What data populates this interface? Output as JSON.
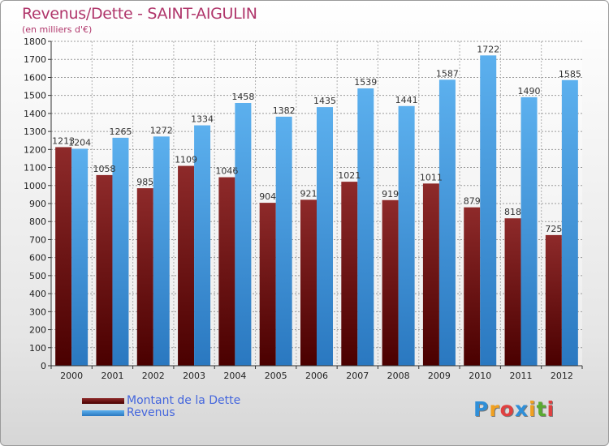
{
  "header": {
    "title": "Revenus/Dette - SAINT-AIGULIN",
    "subtitle": "(en milliers d'€)"
  },
  "legend": {
    "items": [
      {
        "label": "Montant de la Dette",
        "color": "#6b0d0d"
      },
      {
        "label": "Revenus",
        "color": "#4aa3e8"
      }
    ]
  },
  "logo": {
    "letters": [
      "P",
      "r",
      "o",
      "x",
      "i",
      "t",
      "i"
    ],
    "colors": [
      "#2f8fd8",
      "#f0a020",
      "#e04040",
      "#2f8fd8",
      "#f0a020",
      "#5aaa30",
      "#e04040"
    ]
  },
  "chart_data": {
    "type": "bar",
    "categories": [
      "2000",
      "2001",
      "2002",
      "2003",
      "2004",
      "2005",
      "2006",
      "2007",
      "2008",
      "2009",
      "2010",
      "2011",
      "2012"
    ],
    "series": [
      {
        "name": "Montant de la Dette",
        "color": "#7a1818",
        "values": [
          1213,
          1058,
          985,
          1109,
          1046,
          904,
          921,
          1021,
          919,
          1011,
          879,
          818,
          725
        ],
        "labels": [
          "1213",
          "1058",
          "985",
          "1109",
          "1046",
          "904",
          "921",
          "1021",
          "919",
          "1011",
          "879",
          "818",
          "725"
        ]
      },
      {
        "name": "Revenus",
        "color": "#4aa3e8",
        "values": [
          1204,
          1265,
          1272,
          1334,
          1458,
          1382,
          1435,
          1539,
          1441,
          1587,
          1722,
          1490,
          1585
        ],
        "labels": [
          "1204",
          "1265",
          "1272",
          "1334",
          "1458",
          "1382",
          "1435",
          "1539",
          "1441",
          "1587",
          "1722",
          "1490",
          "1585"
        ]
      }
    ],
    "ylim": [
      0,
      1800
    ],
    "yticks": [
      0,
      100,
      200,
      300,
      400,
      500,
      600,
      700,
      800,
      900,
      1000,
      1100,
      1200,
      1300,
      1400,
      1500,
      1600,
      1700,
      1800
    ],
    "grid": true,
    "legend_position": "bottom-left"
  }
}
